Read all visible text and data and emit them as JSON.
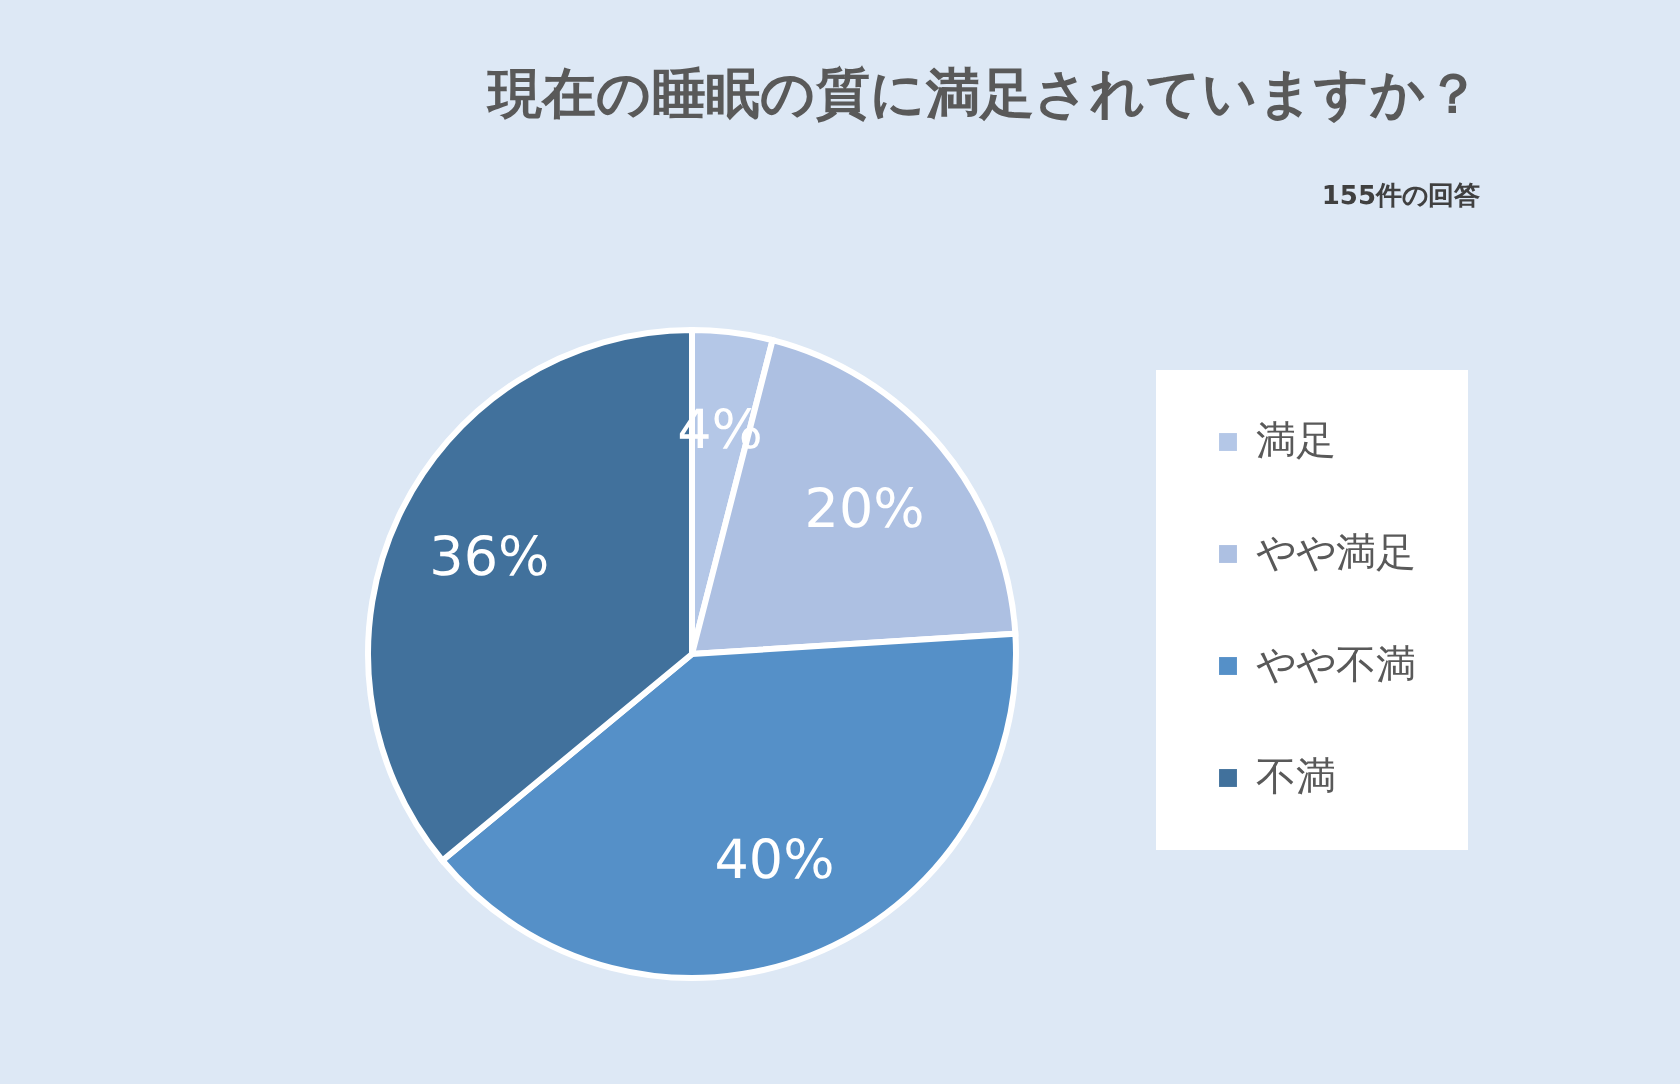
{
  "chart_data": {
    "type": "pie",
    "title": "現在の睡眠の質に満足されていますか？",
    "subtitle": "155件の回答",
    "categories": [
      "満足",
      "やや満足",
      "やや不満",
      "不満"
    ],
    "values": [
      4,
      20,
      40,
      36
    ],
    "value_labels": [
      "4%",
      "20%",
      "40%",
      "36%"
    ],
    "colors": [
      "#b4c7e7",
      "#adc0e2",
      "#5590c8",
      "#41719c"
    ],
    "legend": "right"
  }
}
